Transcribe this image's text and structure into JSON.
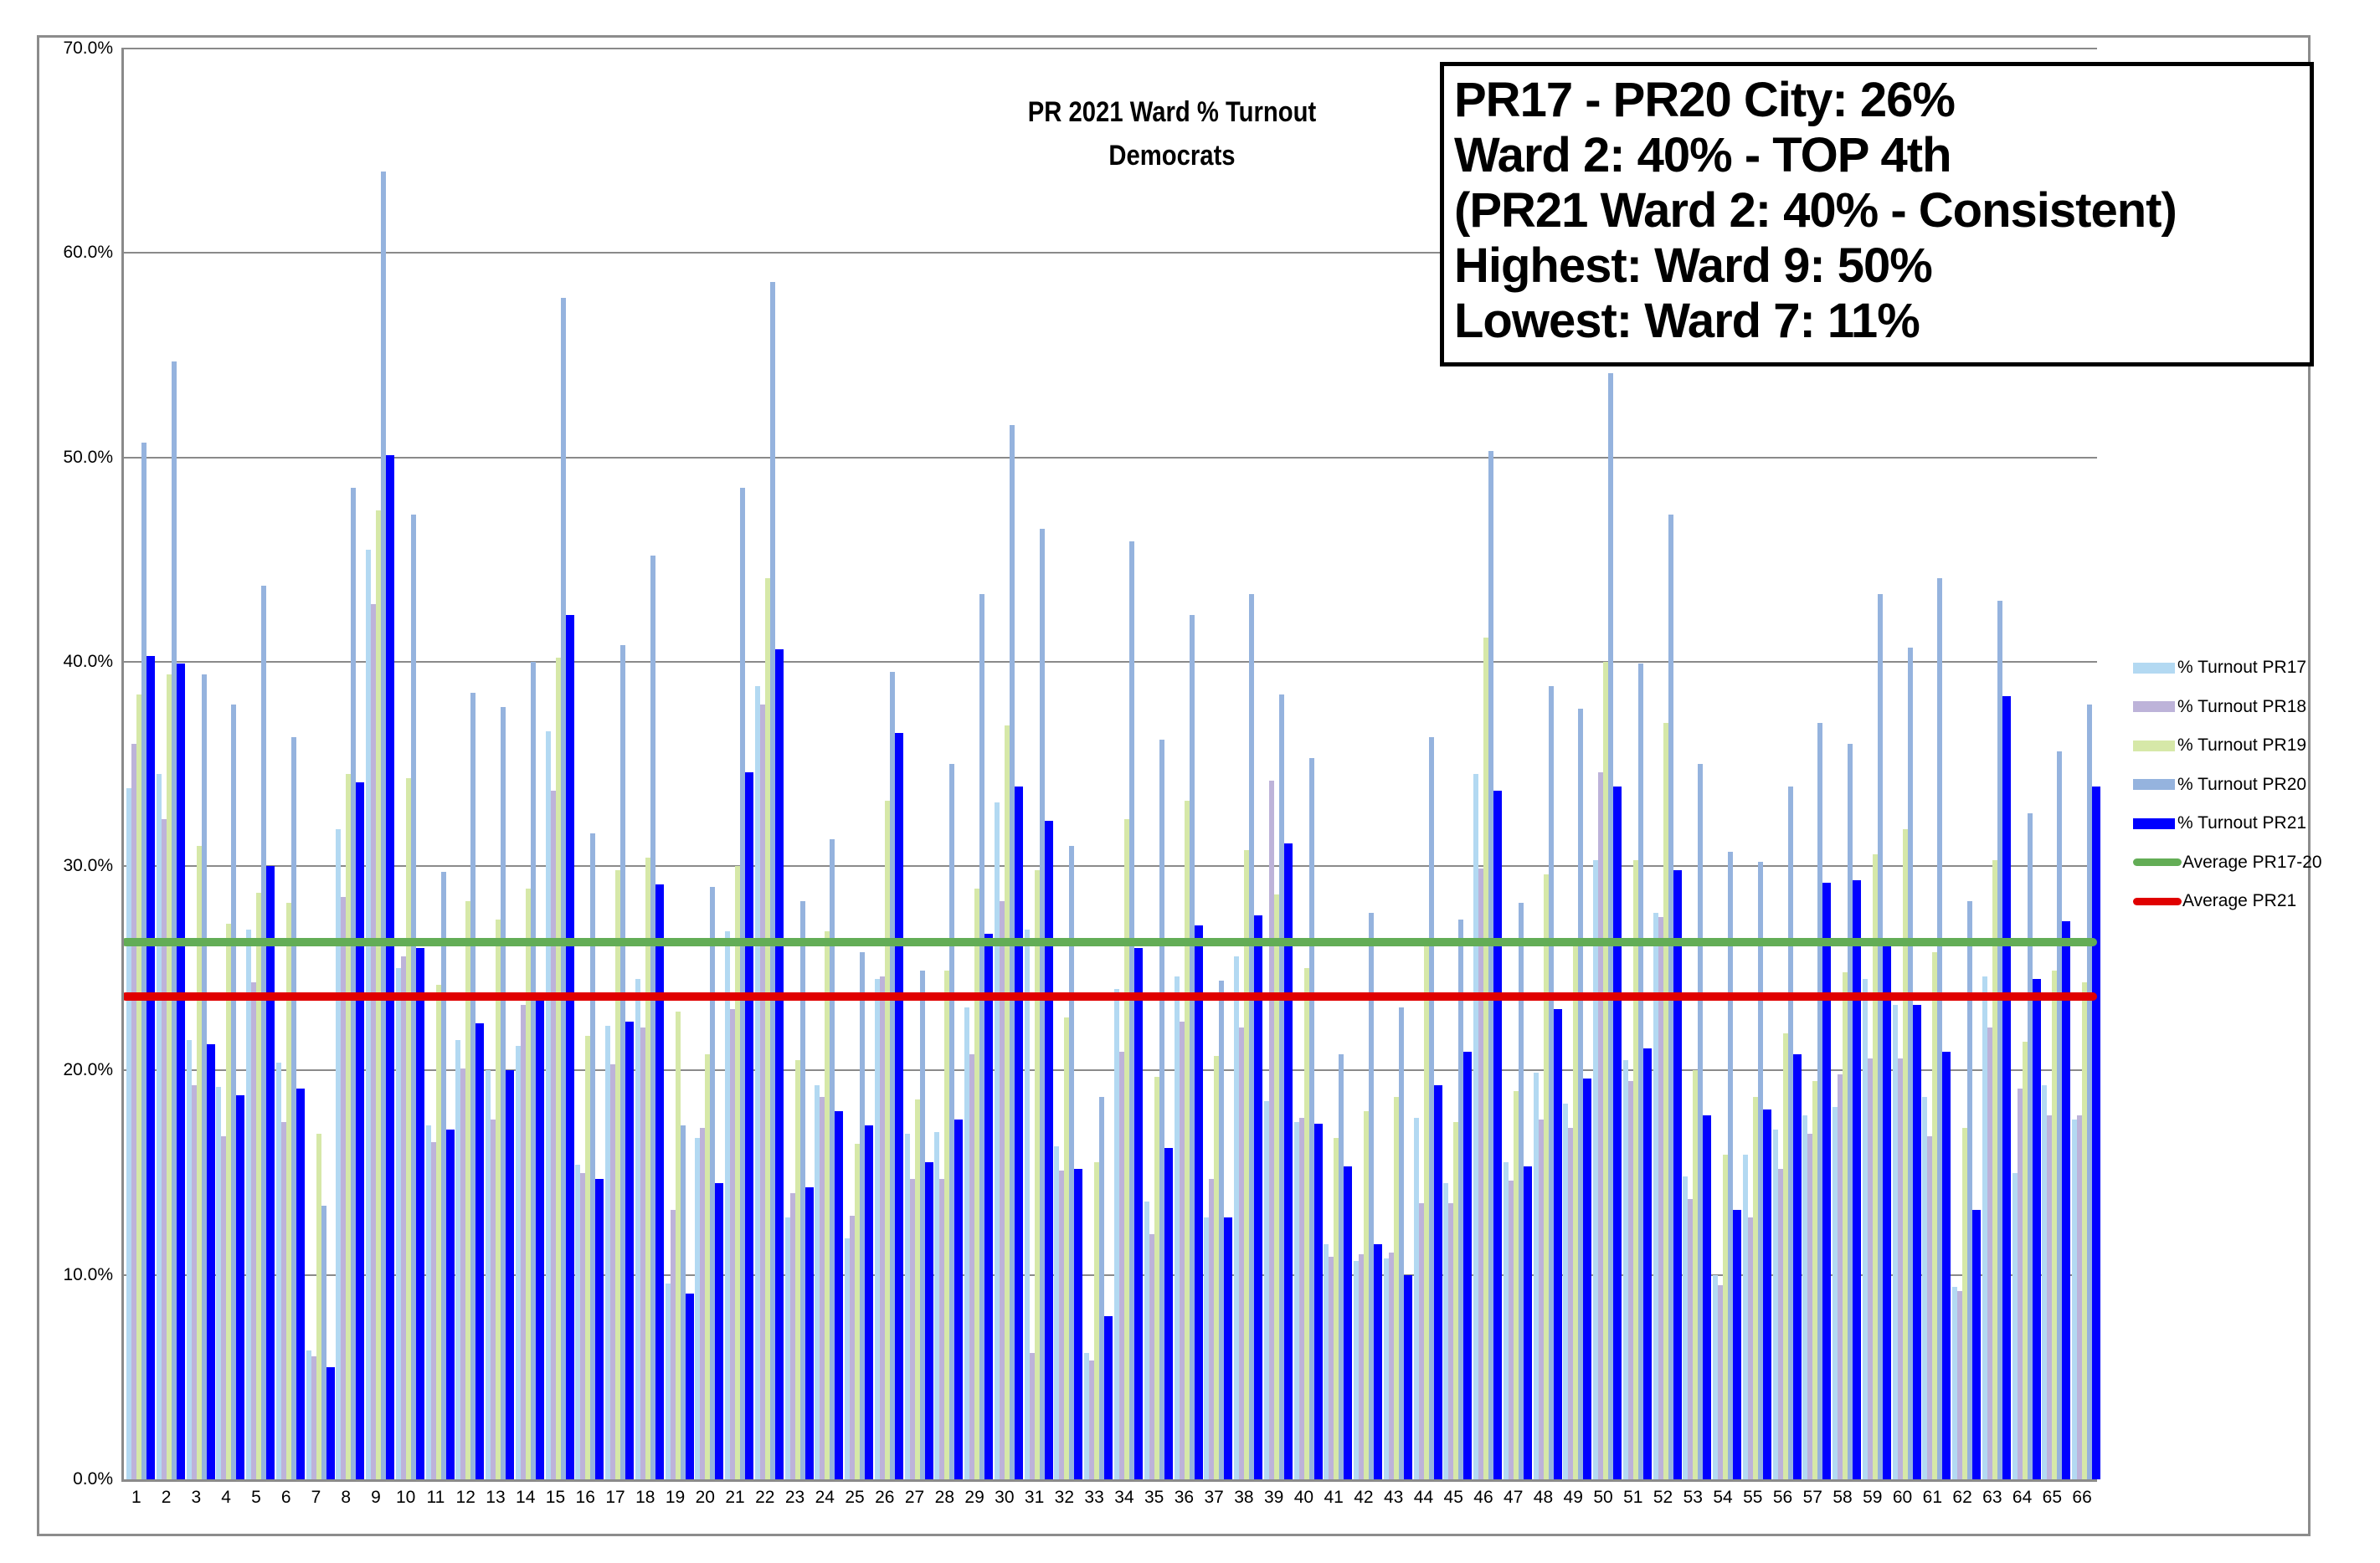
{
  "chart_data": {
    "type": "bar",
    "title": "PR 2021 Ward % Turnout",
    "subtitle": "Democrats",
    "xlabel": "",
    "ylabel": "",
    "ylim": [
      0,
      70
    ],
    "yticks": [
      "0.0%",
      "10.0%",
      "20.0%",
      "30.0%",
      "40.0%",
      "50.0%",
      "60.0%",
      "70.0%"
    ],
    "grid": true,
    "legend_position": "right",
    "categories": [
      "1",
      "2",
      "3",
      "4",
      "5",
      "6",
      "7",
      "8",
      "9",
      "10",
      "11",
      "12",
      "13",
      "14",
      "15",
      "16",
      "17",
      "18",
      "19",
      "20",
      "21",
      "22",
      "23",
      "24",
      "25",
      "26",
      "27",
      "28",
      "29",
      "30",
      "31",
      "32",
      "33",
      "34",
      "35",
      "36",
      "37",
      "38",
      "39",
      "40",
      "41",
      "42",
      "43",
      "44",
      "45",
      "46",
      "47",
      "48",
      "49",
      "50",
      "51",
      "52",
      "53",
      "54",
      "55",
      "56",
      "57",
      "58",
      "59",
      "60",
      "61",
      "62",
      "63",
      "64",
      "65",
      "66"
    ],
    "series": [
      {
        "name": "% Turnout PR17",
        "color": "#b3d9f2",
        "values": [
          33.8,
          34.5,
          21.5,
          19.2,
          26.9,
          20.4,
          6.3,
          31.8,
          45.5,
          25.0,
          17.3,
          21.5,
          20.0,
          21.2,
          36.6,
          15.4,
          22.2,
          24.5,
          9.6,
          16.7,
          26.8,
          38.8,
          12.8,
          19.3,
          11.8,
          24.5,
          16.9,
          17.0,
          23.1,
          33.1,
          26.9,
          16.3,
          6.2,
          24.0,
          13.6,
          24.6,
          12.8,
          25.6,
          18.5,
          17.5,
          11.5,
          10.7,
          10.8,
          17.7,
          14.5,
          34.5,
          15.5,
          19.9,
          18.4,
          30.3,
          20.5,
          27.7,
          14.8,
          10.0,
          15.9,
          17.1,
          17.8,
          18.2,
          24.5,
          23.2,
          18.7,
          9.4,
          24.6,
          15.0,
          19.3,
          17.6
        ]
      },
      {
        "name": "% Turnout PR18",
        "color": "#bdb3d9",
        "values": [
          36.0,
          32.3,
          19.3,
          16.8,
          24.3,
          17.5,
          6.0,
          28.5,
          42.8,
          25.6,
          16.5,
          20.1,
          17.6,
          23.2,
          33.7,
          15.0,
          20.3,
          22.1,
          13.2,
          17.2,
          23.0,
          37.9,
          14.0,
          18.7,
          12.9,
          24.6,
          14.7,
          14.7,
          20.8,
          28.3,
          6.2,
          15.1,
          5.8,
          20.9,
          12.0,
          22.4,
          14.7,
          22.1,
          34.2,
          17.7,
          10.9,
          11.0,
          11.1,
          13.5,
          13.5,
          29.9,
          14.6,
          17.6,
          17.2,
          34.6,
          19.5,
          27.5,
          13.7,
          9.5,
          12.8,
          15.2,
          16.9,
          19.8,
          20.6,
          20.6,
          16.8,
          9.2,
          22.1,
          19.1,
          17.8,
          17.8
        ]
      },
      {
        "name": "% Turnout PR19",
        "color": "#d6e8a8",
        "values": [
          38.4,
          39.4,
          31.0,
          27.2,
          28.7,
          28.2,
          16.9,
          34.5,
          47.4,
          34.3,
          24.2,
          28.3,
          27.4,
          28.9,
          40.2,
          21.7,
          29.8,
          30.4,
          22.9,
          20.8,
          30.0,
          44.1,
          20.5,
          26.8,
          16.4,
          33.2,
          18.6,
          24.9,
          28.9,
          36.9,
          29.8,
          22.6,
          15.5,
          32.3,
          19.7,
          33.2,
          20.7,
          30.8,
          28.6,
          25.0,
          16.7,
          18.0,
          18.7,
          26.2,
          17.5,
          41.2,
          19.0,
          29.6,
          26.3,
          40.0,
          30.3,
          37.0,
          20.0,
          15.9,
          18.7,
          21.8,
          19.5,
          24.8,
          30.6,
          31.8,
          25.8,
          17.2,
          30.3,
          21.4,
          24.9,
          24.3
        ]
      },
      {
        "name": "% Turnout PR20",
        "color": "#95b3de",
        "values": [
          50.7,
          54.7,
          39.4,
          37.9,
          43.7,
          36.3,
          13.4,
          48.5,
          64.0,
          47.2,
          29.7,
          38.5,
          37.8,
          40.0,
          57.8,
          31.6,
          40.8,
          45.2,
          17.3,
          29.0,
          48.5,
          58.6,
          28.3,
          31.3,
          25.8,
          39.5,
          24.9,
          35.0,
          43.3,
          51.6,
          46.5,
          31.0,
          18.7,
          45.9,
          36.2,
          42.3,
          24.4,
          43.3,
          38.4,
          35.3,
          20.8,
          27.7,
          23.1,
          36.3,
          27.4,
          50.3,
          28.2,
          38.8,
          37.7,
          54.1,
          39.9,
          47.2,
          35.0,
          30.7,
          30.2,
          33.9,
          37.0,
          36.0,
          43.3,
          40.7,
          44.1,
          28.3,
          43.0,
          32.6,
          35.6,
          37.9
        ]
      },
      {
        "name": "% Turnout PR21",
        "color": "#0000ff",
        "values": [
          40.3,
          39.9,
          21.3,
          18.8,
          30.0,
          19.1,
          5.5,
          34.1,
          50.1,
          26.0,
          17.1,
          22.3,
          20.0,
          23.5,
          42.3,
          14.7,
          22.4,
          29.1,
          9.1,
          14.5,
          34.6,
          40.6,
          14.3,
          18.0,
          17.3,
          36.5,
          15.5,
          17.6,
          26.7,
          33.9,
          32.2,
          15.2,
          8.0,
          26.0,
          16.2,
          27.1,
          12.8,
          27.6,
          31.1,
          17.4,
          15.3,
          11.5,
          10.0,
          19.3,
          20.9,
          33.7,
          15.3,
          23.0,
          19.6,
          33.9,
          21.1,
          29.8,
          17.8,
          13.2,
          18.1,
          20.8,
          29.2,
          29.3,
          26.2,
          23.2,
          20.9,
          13.2,
          38.3,
          24.5,
          27.3,
          33.9
        ]
      },
      {
        "name": "Average PR17-20",
        "color": "#63ad56",
        "type": "line",
        "value": 26.3
      },
      {
        "name": "Average PR21",
        "color": "#e00000",
        "type": "line",
        "value": 23.6
      }
    ],
    "annotation": [
      "PR17 - PR20 City:  26%",
      "Ward 2:  40% - TOP 4th",
      "(PR21 Ward 2:  40% - Consistent)",
      "Highest:   Ward 9:  50%",
      "Lowest:  Ward  7:  11%"
    ]
  },
  "title": {
    "line1": "PR 2021 Ward % Turnout",
    "line2": "Democrats"
  },
  "note": {
    "lines": [
      "PR17 - PR20 City:  26%",
      "Ward 2:  40% - TOP 4th",
      "(PR21 Ward 2:  40% - Consistent)",
      "Highest:   Ward 9:  50%",
      "Lowest:  Ward  7:  11%"
    ]
  },
  "legend": {
    "items": [
      {
        "label": "% Turnout PR17",
        "color": "#b3d9f2",
        "kind": "bar"
      },
      {
        "label": "% Turnout PR18",
        "color": "#bdb3d9",
        "kind": "bar"
      },
      {
        "label": "% Turnout PR19",
        "color": "#d6e8a8",
        "kind": "bar"
      },
      {
        "label": "% Turnout PR20",
        "color": "#95b3de",
        "kind": "bar"
      },
      {
        "label": "% Turnout PR21",
        "color": "#0000ff",
        "kind": "bar"
      },
      {
        "label": "Average PR17-20",
        "color": "#63ad56",
        "kind": "line"
      },
      {
        "label": "Average PR21",
        "color": "#e00000",
        "kind": "line"
      }
    ]
  }
}
